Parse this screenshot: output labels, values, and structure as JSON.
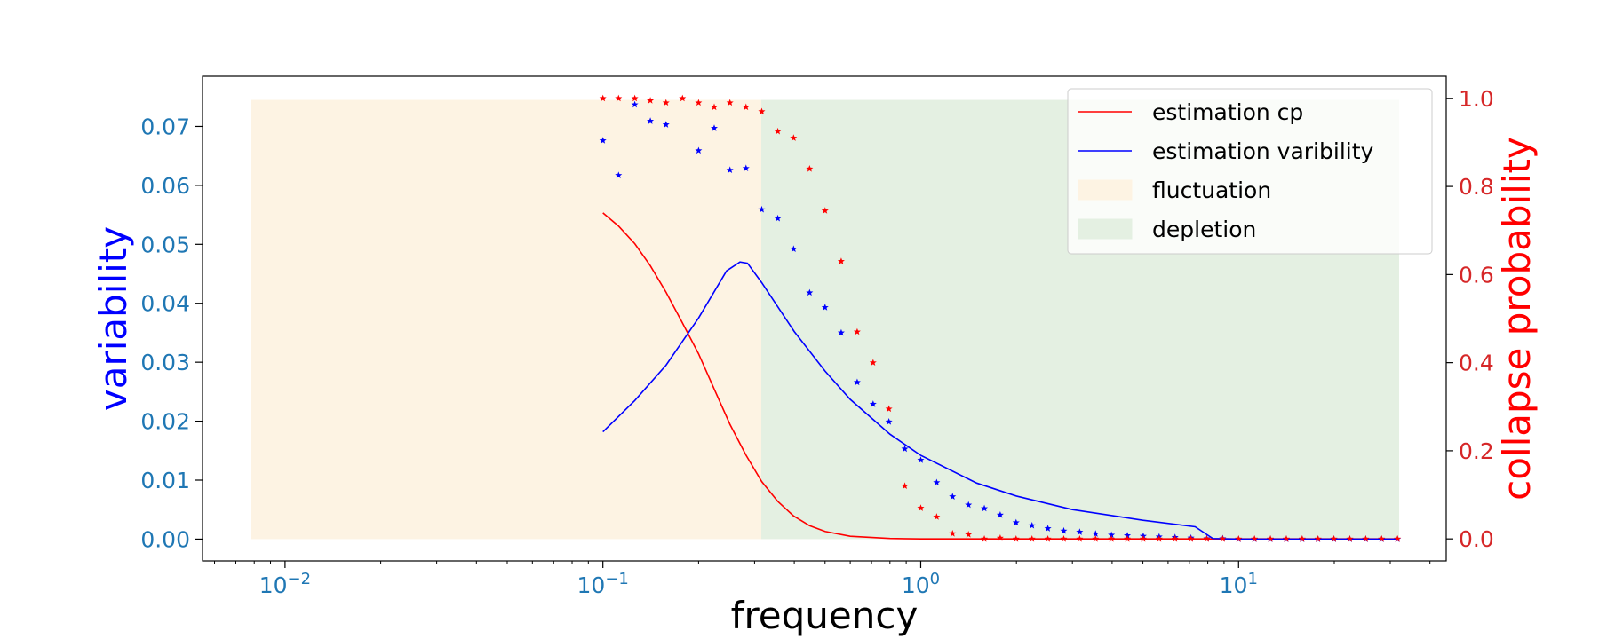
{
  "chart_data": {
    "type": "line",
    "xlabel": "frequency",
    "ylabel_left": "variability",
    "ylabel_right": "collapse probability",
    "x_scale": "log",
    "xlim": [
      0.0055,
      45
    ],
    "ylim_left": [
      -0.0037,
      0.0785
    ],
    "ylim_right": [
      -0.05,
      1.05
    ],
    "x_ticks": [
      {
        "value": 0.01,
        "base": "10",
        "exp": "−2"
      },
      {
        "value": 0.1,
        "base": "10",
        "exp": "−1"
      },
      {
        "value": 1,
        "base": "10",
        "exp": "0"
      },
      {
        "value": 10,
        "base": "10",
        "exp": "1"
      }
    ],
    "y_ticks_left": [
      {
        "value": 0.0,
        "label": "0.00"
      },
      {
        "value": 0.01,
        "label": "0.01"
      },
      {
        "value": 0.02,
        "label": "0.02"
      },
      {
        "value": 0.03,
        "label": "0.03"
      },
      {
        "value": 0.04,
        "label": "0.04"
      },
      {
        "value": 0.05,
        "label": "0.05"
      },
      {
        "value": 0.06,
        "label": "0.06"
      },
      {
        "value": 0.07,
        "label": "0.07"
      }
    ],
    "y_ticks_right": [
      {
        "value": 0.0,
        "label": "0.0"
      },
      {
        "value": 0.2,
        "label": "0.2"
      },
      {
        "value": 0.4,
        "label": "0.4"
      },
      {
        "value": 0.6,
        "label": "0.6"
      },
      {
        "value": 0.8,
        "label": "0.8"
      },
      {
        "value": 1.0,
        "label": "1.0"
      }
    ],
    "regions": [
      {
        "name": "fluctuation",
        "x_start": 0.0078,
        "x_end": 0.315,
        "y_top": 0.0745,
        "color": "#fdf3e3"
      },
      {
        "name": "depletion",
        "x_start": 0.315,
        "x_end": 32,
        "y_top": 0.0745,
        "color": "#e4f0e2"
      }
    ],
    "series": [
      {
        "name": "estimation cp",
        "axis": "right",
        "style": "line",
        "color": "#ff0000",
        "x": [
          0.1,
          0.112,
          0.126,
          0.141,
          0.158,
          0.178,
          0.2,
          0.224,
          0.251,
          0.282,
          0.316,
          0.355,
          0.398,
          0.447,
          0.5,
          0.6,
          0.8,
          1.0,
          1.5,
          2,
          5,
          10,
          20,
          32
        ],
        "y": [
          0.74,
          0.71,
          0.67,
          0.62,
          0.56,
          0.49,
          0.42,
          0.34,
          0.26,
          0.19,
          0.13,
          0.085,
          0.052,
          0.03,
          0.017,
          0.006,
          0.001,
          0.0,
          0.0,
          0.0,
          0.0,
          0.0,
          0.0,
          0.0
        ]
      },
      {
        "name": "estimation varibility",
        "axis": "left",
        "style": "line",
        "color": "#0000ff",
        "x": [
          0.1,
          0.126,
          0.158,
          0.2,
          0.245,
          0.27,
          0.285,
          0.316,
          0.4,
          0.5,
          0.6,
          0.8,
          1.0,
          1.5,
          2,
          3,
          5,
          7.3,
          8.3,
          10,
          20,
          32
        ],
        "y": [
          0.0182,
          0.0235,
          0.0295,
          0.0375,
          0.0455,
          0.047,
          0.0468,
          0.0435,
          0.0352,
          0.0285,
          0.0237,
          0.0178,
          0.0142,
          0.0095,
          0.0073,
          0.005,
          0.0032,
          0.0021,
          0.0001,
          0.0,
          0.0,
          0.0
        ]
      },
      {
        "name": "variability samples",
        "axis": "left",
        "style": "star",
        "color": "#0000ff",
        "x": [
          0.1,
          0.112,
          0.126,
          0.141,
          0.158,
          0.2,
          0.224,
          0.251,
          0.282,
          0.316,
          0.355,
          0.398,
          0.447,
          0.5,
          0.562,
          0.631,
          0.708,
          0.794,
          0.891,
          1.0,
          1.122,
          1.259,
          1.413,
          1.585,
          1.778,
          1.995,
          2.239,
          2.512,
          2.818,
          3.162,
          3.548,
          3.981,
          4.467,
          5.012,
          5.623,
          6.31,
          7.079,
          7.943,
          8.913,
          10,
          11.22,
          12.59,
          14.13,
          15.85,
          17.78,
          19.95,
          22.39,
          25.12,
          28.18,
          31.62
        ],
        "y": [
          0.0676,
          0.0617,
          0.0737,
          0.0709,
          0.0703,
          0.0659,
          0.0697,
          0.0626,
          0.0629,
          0.0559,
          0.0544,
          0.0492,
          0.0418,
          0.0393,
          0.035,
          0.0266,
          0.0229,
          0.0199,
          0.0153,
          0.0134,
          0.0096,
          0.0072,
          0.0058,
          0.0052,
          0.0041,
          0.0028,
          0.0023,
          0.0018,
          0.0014,
          0.0012,
          0.0009,
          0.0007,
          0.0006,
          0.0005,
          0.0004,
          0.0003,
          0.0002,
          0.0001,
          0.0001,
          0.0,
          0.0,
          0.0,
          0.0,
          0.0,
          0.0,
          0.0,
          0.0,
          0.0,
          0.0,
          0.0
        ]
      },
      {
        "name": "collapse probability samples",
        "axis": "right",
        "style": "star",
        "color": "#ff0000",
        "x": [
          0.1,
          0.112,
          0.126,
          0.141,
          0.158,
          0.178,
          0.2,
          0.224,
          0.251,
          0.282,
          0.316,
          0.355,
          0.398,
          0.447,
          0.5,
          0.562,
          0.631,
          0.708,
          0.794,
          0.891,
          1.0,
          1.122,
          1.259,
          1.413,
          1.585,
          1.778,
          1.995,
          2.239,
          2.512,
          2.818,
          3.162,
          3.548,
          3.981,
          4.467,
          5.012,
          5.623,
          6.31,
          7.079,
          7.943,
          8.913,
          10,
          11.22,
          12.59,
          14.13,
          15.85,
          17.78,
          19.95,
          22.39,
          25.12,
          28.18,
          31.62
        ],
        "y": [
          1.0,
          1.0,
          1.0,
          0.995,
          0.99,
          1.0,
          0.99,
          0.98,
          0.99,
          0.98,
          0.97,
          0.925,
          0.91,
          0.84,
          0.745,
          0.63,
          0.47,
          0.4,
          0.295,
          0.12,
          0.07,
          0.05,
          0.012,
          0.01,
          0.0,
          0.002,
          0.0,
          0.0,
          0.0,
          0.0,
          0.0,
          0.0,
          0.0,
          0.0,
          0.0,
          0.0,
          0.0,
          0.0,
          0.0,
          0.0,
          0.0,
          0.0,
          0.0,
          0.0,
          0.0,
          0.0,
          0.0,
          0.0,
          0.0,
          0.0,
          0.0
        ]
      }
    ],
    "legend": {
      "placement": "top-right",
      "entries": [
        {
          "label": "estimation cp",
          "kind": "line",
          "color": "#ff0000"
        },
        {
          "label": "estimation varibility",
          "kind": "line",
          "color": "#0000ff"
        },
        {
          "label": "fluctuation",
          "kind": "patch",
          "color": "#fdf3e3"
        },
        {
          "label": "depletion",
          "kind": "patch",
          "color": "#e4f0e2"
        }
      ]
    },
    "colors": {
      "left_axis_ticks": "#1f77b4",
      "left_axis_label": "#0000ff",
      "right_axis_ticks": "#d62728",
      "right_axis_label": "#ff0000",
      "x_axis": "#000000"
    }
  }
}
